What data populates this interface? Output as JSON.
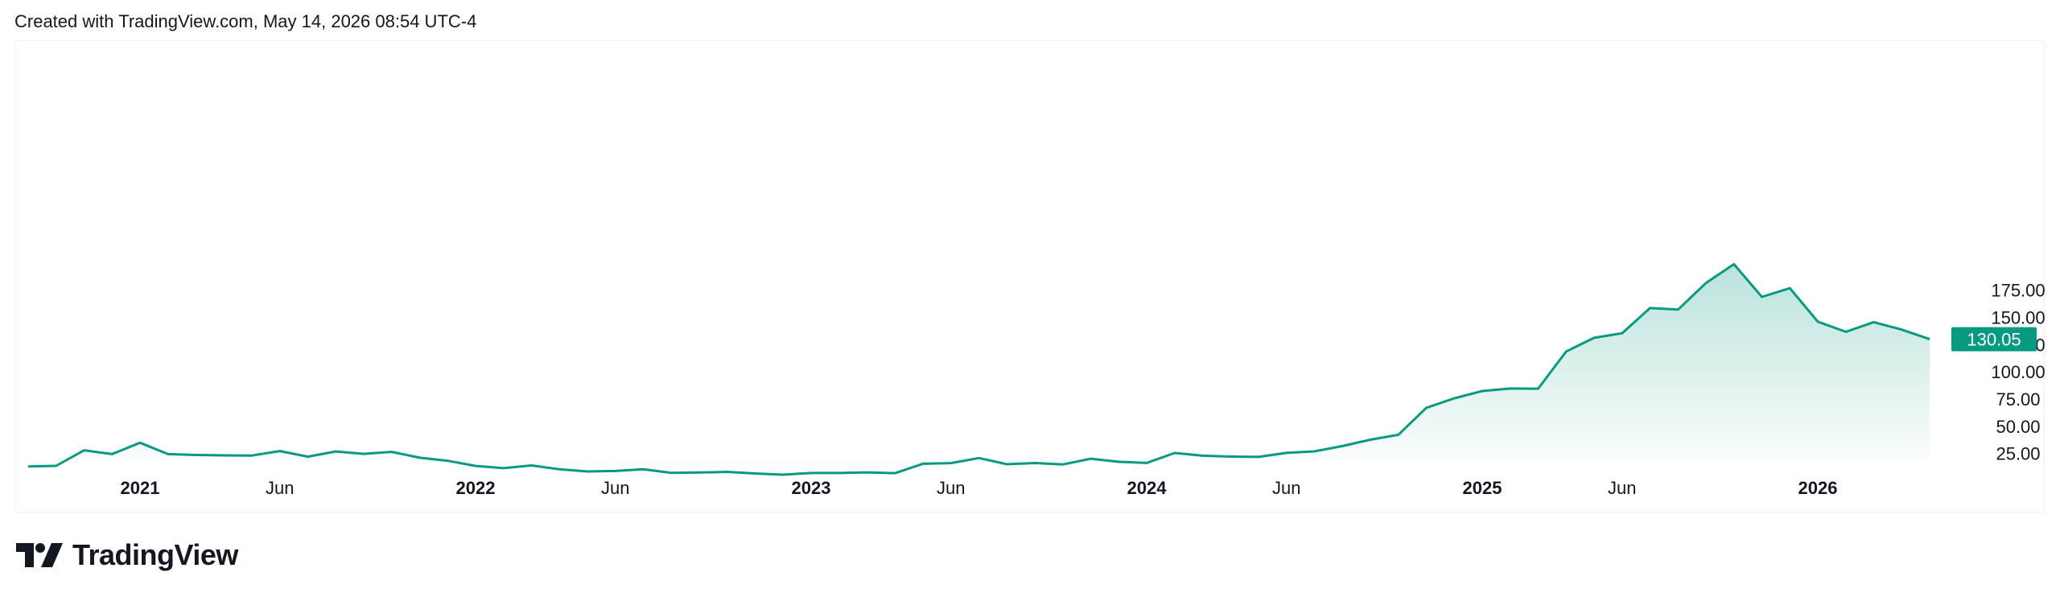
{
  "caption": "Created with TradingView.com, May 14, 2026 08:54 UTC-4",
  "brand": {
    "name": "TradingView",
    "logo_icon": "tradingview-logo-icon"
  },
  "colors": {
    "line": "#089981",
    "badge": "#089981",
    "fill_top": "#089981",
    "text": "#131722"
  },
  "chart_data": {
    "type": "area",
    "title": "",
    "xlabel": "",
    "ylabel": "",
    "ylim": [
      8,
      205
    ],
    "y_ticks": [
      "25.00",
      "50.00",
      "75.00",
      "100.00",
      "125.00",
      "150.00",
      "175.00"
    ],
    "x_ticks": [
      {
        "label": "2021",
        "year": true,
        "date": "2021-01"
      },
      {
        "label": "Jun",
        "year": false,
        "date": "2021-06"
      },
      {
        "label": "2022",
        "year": true,
        "date": "2022-01"
      },
      {
        "label": "Jun",
        "year": false,
        "date": "2022-06"
      },
      {
        "label": "2023",
        "year": true,
        "date": "2023-01"
      },
      {
        "label": "Jun",
        "year": false,
        "date": "2023-06"
      },
      {
        "label": "2024",
        "year": true,
        "date": "2024-01"
      },
      {
        "label": "Jun",
        "year": false,
        "date": "2024-06"
      },
      {
        "label": "2025",
        "year": true,
        "date": "2025-01"
      },
      {
        "label": "Jun",
        "year": false,
        "date": "2025-06"
      },
      {
        "label": "2026",
        "year": true,
        "date": "2026-01"
      }
    ],
    "last_price": "130.05",
    "series": [
      {
        "dates": [
          "2020-09",
          "2020-10",
          "2020-11",
          "2020-12",
          "2021-01",
          "2021-02",
          "2021-03",
          "2021-04",
          "2021-05",
          "2021-06",
          "2021-07",
          "2021-08",
          "2021-09",
          "2021-10",
          "2021-11",
          "2021-12",
          "2022-01",
          "2022-02",
          "2022-03",
          "2022-04",
          "2022-05",
          "2022-06",
          "2022-07",
          "2022-08",
          "2022-09",
          "2022-10",
          "2022-11",
          "2022-12",
          "2023-01",
          "2023-02",
          "2023-03",
          "2023-04",
          "2023-05",
          "2023-06",
          "2023-07",
          "2023-08",
          "2023-09",
          "2023-10",
          "2023-11",
          "2023-12",
          "2024-01",
          "2024-02",
          "2024-03",
          "2024-04",
          "2024-05",
          "2024-06",
          "2024-07",
          "2024-08",
          "2024-09",
          "2024-10",
          "2024-11",
          "2024-12",
          "2025-01",
          "2025-02",
          "2025-03",
          "2025-04",
          "2025-05",
          "2025-06",
          "2025-07",
          "2025-08",
          "2025-09",
          "2025-10",
          "2025-11",
          "2025-12",
          "2026-01",
          "2026-02",
          "2026-03",
          "2026-04",
          "2026-05"
        ],
        "values": [
          13.2,
          13.7,
          28.0,
          24.5,
          34.9,
          24.5,
          23.7,
          23.3,
          23.2,
          27.3,
          22.1,
          26.9,
          24.7,
          26.6,
          21.2,
          18.4,
          13.6,
          11.6,
          14.1,
          10.5,
          8.5,
          9.0,
          10.5,
          7.2,
          7.6,
          8.2,
          6.7,
          5.6,
          7.1,
          7.1,
          7.7,
          7.0,
          15.6,
          16.2,
          20.9,
          15.2,
          16.3,
          15.0,
          20.3,
          17.4,
          16.4,
          25.5,
          23.0,
          22.2,
          21.9,
          25.6,
          27.0,
          31.9,
          37.7,
          42.2,
          67.0,
          75.7,
          82.4,
          84.7,
          84.6,
          118.7,
          131.3,
          135.5,
          158.6,
          157.2,
          181.6,
          198.9,
          168.9,
          176.9,
          146.1,
          136.8,
          145.7,
          138.8,
          130.05
        ]
      }
    ]
  }
}
